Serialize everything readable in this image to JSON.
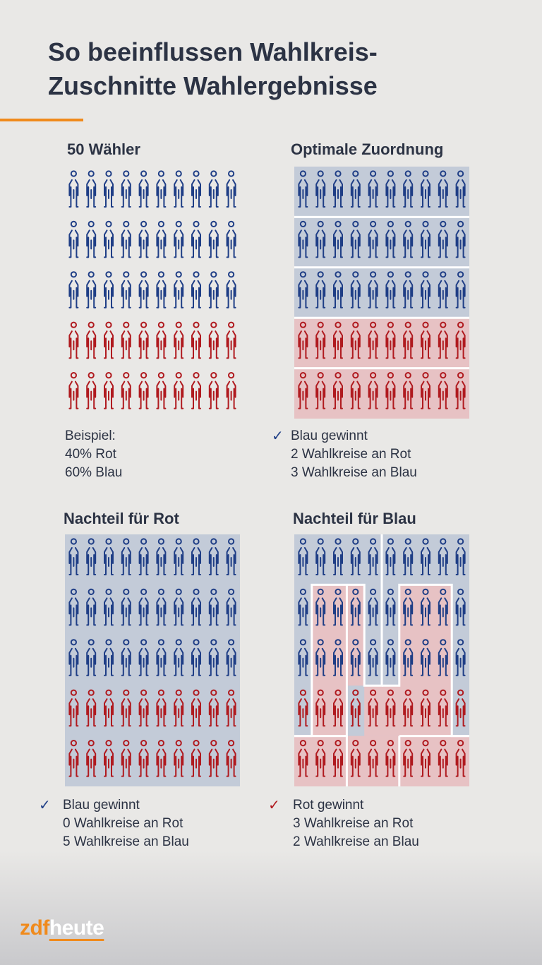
{
  "title": {
    "line1": "So beeinflussen Wahlkreis-",
    "line2": "Zuschnitte Wahlergebnisse"
  },
  "colors": {
    "accent": "#f08a1c",
    "blue_voter": "#1f3e86",
    "red_voter": "#b01a1f",
    "blue_zone": "#c3cbd8",
    "red_zone": "#e7c2c4",
    "text": "#2c3344"
  },
  "panels": {
    "voters": {
      "title": "50 Wähler",
      "rows": [
        "blue",
        "blue",
        "blue",
        "red",
        "red"
      ],
      "note": [
        "Beispiel:",
        "40% Rot",
        "60% Blau"
      ]
    },
    "optimal": {
      "title": "Optimale Zuordnung",
      "rows": [
        "blue",
        "blue",
        "blue",
        "red",
        "red"
      ],
      "result_icon": "check-icon",
      "result": [
        "Blau gewinnt",
        "2 Wahlkreise an Rot",
        "3 Wahlkreise an Blau"
      ]
    },
    "disadvantage_red": {
      "title": "Nachteil für Rot",
      "rows": [
        "blue",
        "blue",
        "blue",
        "red",
        "red"
      ],
      "result_icon": "check-icon",
      "result": [
        "Blau gewinnt",
        "0 Wahlkreise an Rot",
        "5 Wahlkreise an Blau"
      ]
    },
    "disadvantage_blue": {
      "title": "Nachteil für Blau",
      "rows": [
        "blue",
        "blue",
        "blue",
        "red",
        "red"
      ],
      "result_icon": "check-icon",
      "result": [
        "Rot gewinnt",
        "3 Wahlkreise an Rot",
        "2 Wahlkreise an Blau"
      ]
    }
  },
  "logo": {
    "part1": "zdf",
    "part2": "heute"
  }
}
